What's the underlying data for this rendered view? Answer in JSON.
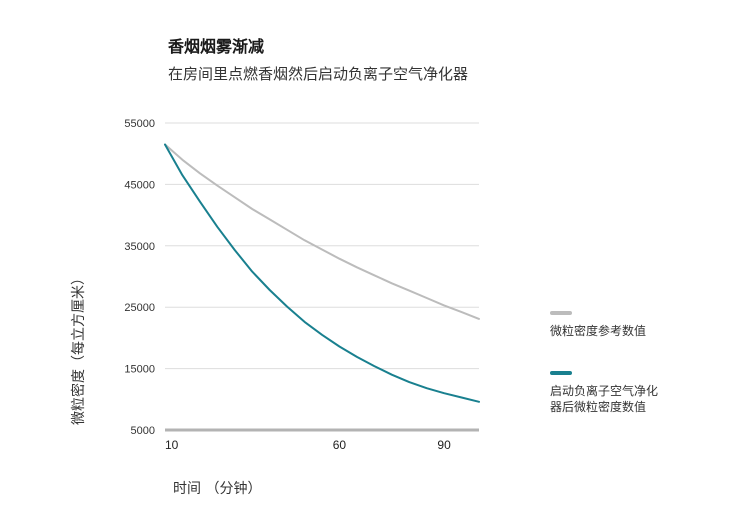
{
  "chart_data": {
    "type": "line",
    "title": "香烟烟雾渐减",
    "subtitle": "在房间里点燃香烟然后启动负离子空气净化器",
    "xlabel": "时间 （分钟）",
    "ylabel": "微粒密度（每立方厘米）",
    "xlim": [
      10,
      100
    ],
    "ylim": [
      5000,
      55000
    ],
    "x_ticks": [
      10,
      60,
      90
    ],
    "y_ticks": [
      5000,
      15000,
      25000,
      35000,
      45000,
      55000
    ],
    "grid": true,
    "legend_position": "right",
    "series": [
      {
        "name": "微粒密度参考数值",
        "color": "#bcbcbc",
        "x": [
          10,
          15,
          20,
          25,
          30,
          35,
          40,
          45,
          50,
          55,
          60,
          65,
          70,
          75,
          80,
          85,
          90,
          95,
          100
        ],
        "y": [
          51500,
          49000,
          46800,
          44800,
          42900,
          41000,
          39300,
          37600,
          35900,
          34400,
          32900,
          31500,
          30200,
          28900,
          27700,
          26500,
          25300,
          24200,
          23100
        ]
      },
      {
        "name": "启动负离子空气净化器后微粒密度数值",
        "color": "#19808f",
        "x": [
          10,
          15,
          20,
          25,
          30,
          35,
          40,
          45,
          50,
          55,
          60,
          65,
          70,
          75,
          80,
          85,
          90,
          95,
          100
        ],
        "y": [
          51500,
          46500,
          42200,
          38100,
          34300,
          30800,
          27800,
          25100,
          22600,
          20500,
          18600,
          16900,
          15400,
          14000,
          12800,
          11800,
          11000,
          10300,
          9600
        ]
      }
    ]
  }
}
